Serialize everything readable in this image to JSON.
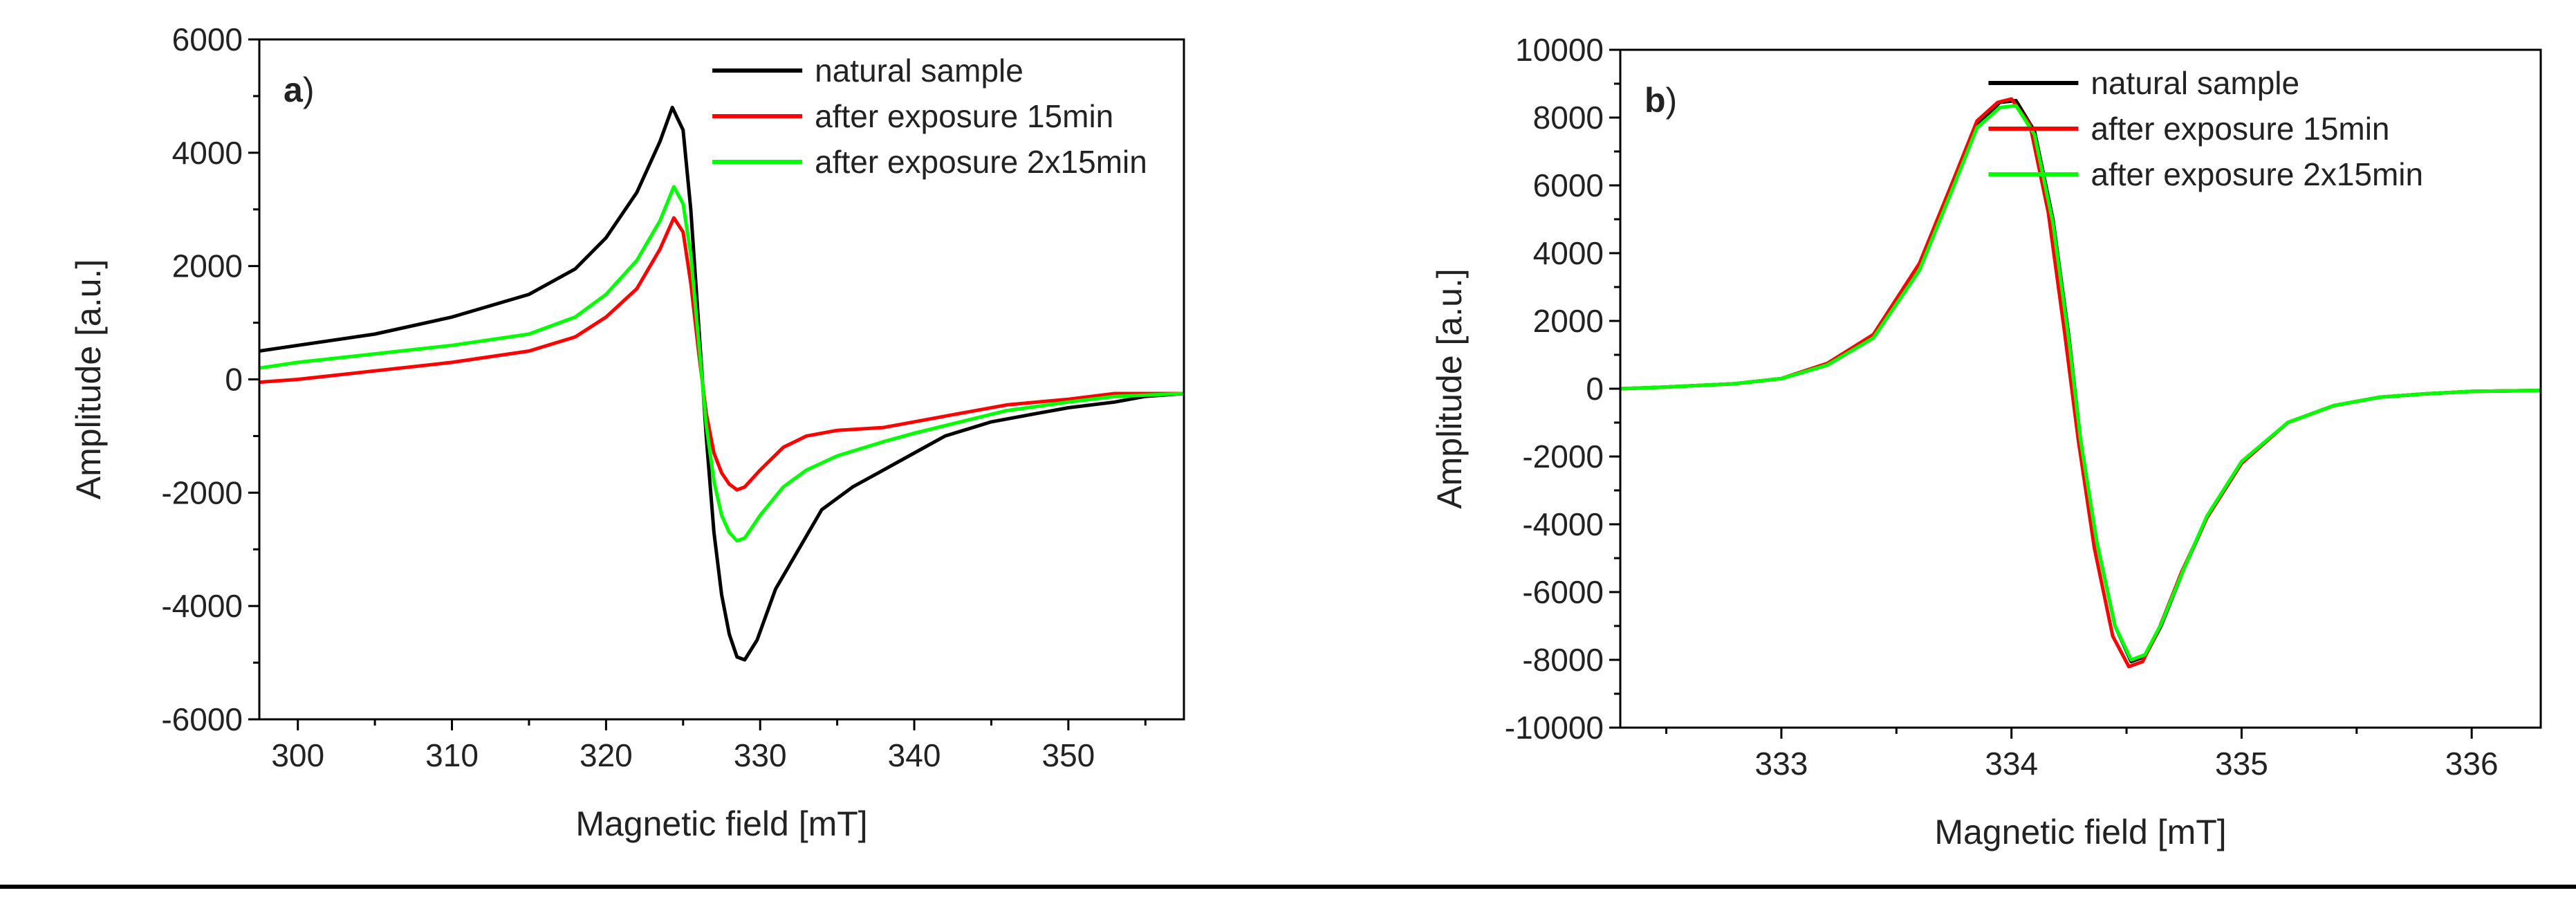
{
  "chart_data": [
    {
      "type": "line",
      "panel_label": "a",
      "panel_label_paren": ")",
      "xlabel": "Magnetic field [mT]",
      "ylabel": "Amplitude [a.u.]",
      "xlim": [
        297.5,
        357.5
      ],
      "ylim": [
        -6000,
        6000
      ],
      "x_ticks": [
        300,
        310,
        320,
        330,
        340,
        350
      ],
      "y_ticks": [
        -6000,
        -4000,
        -2000,
        0,
        2000,
        4000,
        6000
      ],
      "legend_position": "top-right",
      "series": [
        {
          "name": "natural sample",
          "color": "#000000",
          "points": [
            [
              297.5,
              500
            ],
            [
              300,
              600
            ],
            [
              305,
              800
            ],
            [
              310,
              1100
            ],
            [
              315,
              1500
            ],
            [
              318,
              1950
            ],
            [
              320,
              2500
            ],
            [
              322,
              3300
            ],
            [
              323.5,
              4200
            ],
            [
              324.3,
              4800
            ],
            [
              325,
              4400
            ],
            [
              325.5,
              3000
            ],
            [
              326,
              1000
            ],
            [
              326.5,
              -1000
            ],
            [
              327,
              -2700
            ],
            [
              327.5,
              -3800
            ],
            [
              328,
              -4500
            ],
            [
              328.5,
              -4900
            ],
            [
              329,
              -4950
            ],
            [
              329.8,
              -4600
            ],
            [
              331,
              -3700
            ],
            [
              332.5,
              -3000
            ],
            [
              334,
              -2300
            ],
            [
              336,
              -1900
            ],
            [
              338,
              -1600
            ],
            [
              340,
              -1300
            ],
            [
              342,
              -1000
            ],
            [
              345,
              -750
            ],
            [
              348,
              -600
            ],
            [
              350,
              -500
            ],
            [
              353,
              -400
            ],
            [
              355,
              -300
            ],
            [
              357.5,
              -250
            ]
          ]
        },
        {
          "name": "after exposure 15min",
          "color": "#ff0000",
          "points": [
            [
              297.5,
              -50
            ],
            [
              300,
              0
            ],
            [
              305,
              150
            ],
            [
              310,
              300
            ],
            [
              315,
              500
            ],
            [
              318,
              750
            ],
            [
              320,
              1100
            ],
            [
              322,
              1600
            ],
            [
              323.5,
              2300
            ],
            [
              324.4,
              2850
            ],
            [
              325,
              2600
            ],
            [
              325.5,
              1700
            ],
            [
              326,
              500
            ],
            [
              326.5,
              -600
            ],
            [
              327,
              -1300
            ],
            [
              327.5,
              -1650
            ],
            [
              328,
              -1850
            ],
            [
              328.5,
              -1950
            ],
            [
              329,
              -1900
            ],
            [
              330,
              -1600
            ],
            [
              331.5,
              -1200
            ],
            [
              333,
              -1000
            ],
            [
              335,
              -900
            ],
            [
              338,
              -850
            ],
            [
              340,
              -750
            ],
            [
              343,
              -600
            ],
            [
              346,
              -450
            ],
            [
              350,
              -350
            ],
            [
              353,
              -250
            ],
            [
              357.5,
              -250
            ]
          ]
        },
        {
          "name": "after exposure 2x15min",
          "color": "#00ff00",
          "points": [
            [
              297.5,
              200
            ],
            [
              300,
              300
            ],
            [
              305,
              450
            ],
            [
              310,
              600
            ],
            [
              315,
              800
            ],
            [
              318,
              1100
            ],
            [
              320,
              1500
            ],
            [
              322,
              2100
            ],
            [
              323.5,
              2800
            ],
            [
              324.4,
              3400
            ],
            [
              325,
              3100
            ],
            [
              325.5,
              2200
            ],
            [
              326,
              700
            ],
            [
              326.5,
              -800
            ],
            [
              327,
              -1800
            ],
            [
              327.5,
              -2400
            ],
            [
              328,
              -2700
            ],
            [
              328.5,
              -2850
            ],
            [
              329,
              -2800
            ],
            [
              330,
              -2400
            ],
            [
              331.5,
              -1900
            ],
            [
              333,
              -1600
            ],
            [
              335,
              -1350
            ],
            [
              338,
              -1100
            ],
            [
              340,
              -950
            ],
            [
              343,
              -750
            ],
            [
              346,
              -550
            ],
            [
              350,
              -400
            ],
            [
              353,
              -300
            ],
            [
              357.5,
              -250
            ]
          ]
        }
      ]
    },
    {
      "type": "line",
      "panel_label": "b",
      "panel_label_paren": ")",
      "xlabel": "Magnetic field [mT]",
      "ylabel": "Amplitude [a.u.]",
      "xlim": [
        332.3,
        336.3
      ],
      "ylim": [
        -10000,
        10000
      ],
      "x_ticks": [
        333,
        334,
        335,
        336
      ],
      "y_ticks": [
        -10000,
        -8000,
        -6000,
        -4000,
        -2000,
        0,
        2000,
        4000,
        6000,
        8000,
        10000
      ],
      "legend_position": "top-right",
      "series": [
        {
          "name": "natural sample",
          "color": "#000000",
          "points": [
            [
              332.3,
              0
            ],
            [
              332.5,
              50
            ],
            [
              332.8,
              150
            ],
            [
              333,
              300
            ],
            [
              333.2,
              700
            ],
            [
              333.4,
              1500
            ],
            [
              333.6,
              3500
            ],
            [
              333.75,
              6000
            ],
            [
              333.85,
              7800
            ],
            [
              333.95,
              8450
            ],
            [
              334.02,
              8500
            ],
            [
              334.1,
              7600
            ],
            [
              334.18,
              5000
            ],
            [
              334.25,
              1500
            ],
            [
              334.3,
              -1500
            ],
            [
              334.37,
              -4500
            ],
            [
              334.45,
              -7000
            ],
            [
              334.52,
              -8050
            ],
            [
              334.58,
              -7900
            ],
            [
              334.65,
              -7000
            ],
            [
              334.75,
              -5300
            ],
            [
              334.85,
              -3800
            ],
            [
              335,
              -2200
            ],
            [
              335.2,
              -1000
            ],
            [
              335.4,
              -500
            ],
            [
              335.6,
              -250
            ],
            [
              335.8,
              -150
            ],
            [
              336,
              -80
            ],
            [
              336.3,
              -50
            ]
          ]
        },
        {
          "name": "after exposure 15min",
          "color": "#ff0000",
          "points": [
            [
              332.3,
              0
            ],
            [
              332.5,
              50
            ],
            [
              332.8,
              150
            ],
            [
              333,
              300
            ],
            [
              333.2,
              750
            ],
            [
              333.4,
              1600
            ],
            [
              333.6,
              3700
            ],
            [
              333.75,
              6200
            ],
            [
              333.85,
              7900
            ],
            [
              333.94,
              8450
            ],
            [
              334,
              8550
            ],
            [
              334.08,
              7800
            ],
            [
              334.16,
              5200
            ],
            [
              334.23,
              1700
            ],
            [
              334.29,
              -1500
            ],
            [
              334.36,
              -4700
            ],
            [
              334.44,
              -7300
            ],
            [
              334.51,
              -8200
            ],
            [
              334.57,
              -8050
            ],
            [
              334.64,
              -7100
            ],
            [
              334.74,
              -5400
            ],
            [
              334.85,
              -3800
            ],
            [
              335,
              -2200
            ],
            [
              335.2,
              -1000
            ],
            [
              335.4,
              -500
            ],
            [
              335.6,
              -250
            ],
            [
              335.8,
              -150
            ],
            [
              336,
              -80
            ],
            [
              336.3,
              -50
            ]
          ]
        },
        {
          "name": "after exposure 2x15min",
          "color": "#00ff00",
          "points": [
            [
              332.3,
              0
            ],
            [
              332.5,
              50
            ],
            [
              332.8,
              150
            ],
            [
              333,
              300
            ],
            [
              333.2,
              700
            ],
            [
              333.4,
              1500
            ],
            [
              333.6,
              3500
            ],
            [
              333.75,
              6000
            ],
            [
              333.85,
              7700
            ],
            [
              333.95,
              8300
            ],
            [
              334.02,
              8350
            ],
            [
              334.1,
              7500
            ],
            [
              334.18,
              4900
            ],
            [
              334.25,
              1400
            ],
            [
              334.3,
              -1500
            ],
            [
              334.37,
              -4500
            ],
            [
              334.45,
              -7000
            ],
            [
              334.52,
              -8000
            ],
            [
              334.58,
              -7850
            ],
            [
              334.65,
              -6950
            ],
            [
              334.75,
              -5300
            ],
            [
              334.85,
              -3750
            ],
            [
              335,
              -2150
            ],
            [
              335.2,
              -1000
            ],
            [
              335.4,
              -500
            ],
            [
              335.6,
              -250
            ],
            [
              335.8,
              -150
            ],
            [
              336,
              -80
            ],
            [
              336.3,
              -50
            ]
          ]
        }
      ]
    }
  ]
}
